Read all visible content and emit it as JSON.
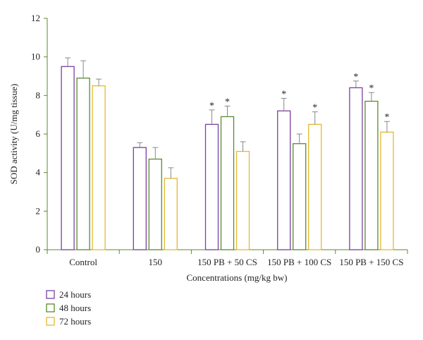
{
  "chart_data": {
    "type": "bar",
    "title": "",
    "xlabel": "Concentrations (mg/kg bw)",
    "ylabel": "SOD activity (U/mg tissue)",
    "ylim": [
      0,
      12
    ],
    "yticks": [
      "0",
      "2",
      "4",
      "6",
      "8",
      "10",
      "12"
    ],
    "categories": [
      "Control",
      "150",
      "150 PB + 50 CS",
      "150 PB + 100 CS",
      "150 PB + 150 CS"
    ],
    "series": [
      {
        "name": "24 hours",
        "color": "#7b3fa0",
        "values": [
          9.5,
          5.3,
          6.5,
          7.2,
          8.4
        ],
        "errors": [
          0.45,
          0.25,
          0.75,
          0.65,
          0.35
        ],
        "significant": [
          false,
          false,
          true,
          true,
          true
        ]
      },
      {
        "name": "48 hours",
        "color": "#5a8a2c",
        "values": [
          8.9,
          4.7,
          6.9,
          5.5,
          7.7
        ],
        "errors": [
          0.9,
          0.6,
          0.55,
          0.5,
          0.45
        ],
        "significant": [
          false,
          false,
          true,
          false,
          true
        ]
      },
      {
        "name": "72 hours",
        "color": "#e6b830",
        "values": [
          8.5,
          3.7,
          5.1,
          6.5,
          6.1
        ],
        "errors": [
          0.35,
          0.55,
          0.5,
          0.65,
          0.55
        ],
        "significant": [
          false,
          false,
          false,
          true,
          true
        ]
      }
    ],
    "significance_marker": "*",
    "legend_position": "bottom-left",
    "grid": false
  }
}
